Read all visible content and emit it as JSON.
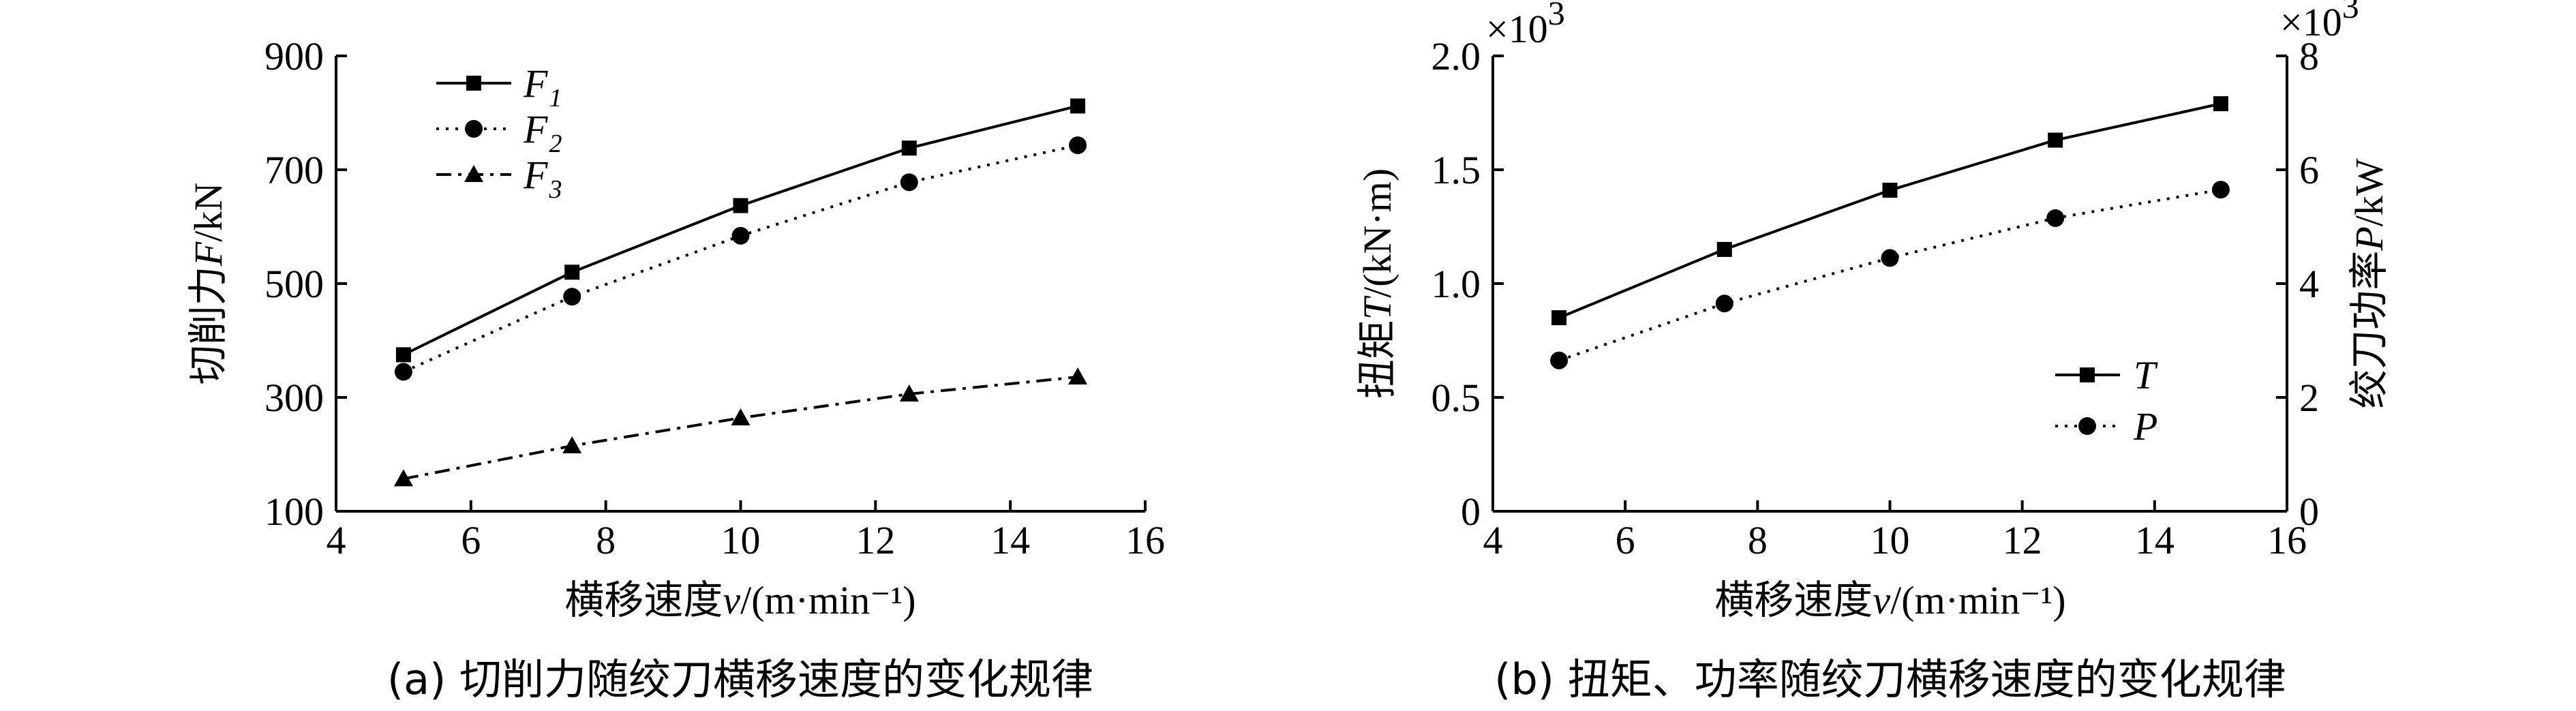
{
  "chart_data": [
    {
      "type": "line",
      "caption": "(a) 切削力随绞刀横移速度的变化规律",
      "xlabel": "横移速度v/(m·min⁻¹)",
      "ylabel": "切削力F/kN",
      "xlim": [
        4,
        16
      ],
      "ylim": [
        100,
        900
      ],
      "xticks": [
        "4",
        "6",
        "8",
        "10",
        "12",
        "14",
        "16"
      ],
      "yticks": [
        "100",
        "300",
        "500",
        "700",
        "900"
      ],
      "legend_position": "top-left",
      "series": [
        {
          "name": "F",
          "sub": "1",
          "marker": "square",
          "line": "solid",
          "x": [
            5,
            7.5,
            10,
            12.5,
            15
          ],
          "y": [
            375,
            520,
            637,
            738,
            812
          ]
        },
        {
          "name": "F",
          "sub": "2",
          "marker": "circle",
          "line": "dotted",
          "x": [
            5,
            7.5,
            10,
            12.5,
            15
          ],
          "y": [
            345,
            477,
            584,
            678,
            743
          ]
        },
        {
          "name": "F",
          "sub": "3",
          "marker": "triangle",
          "line": "dashdot",
          "x": [
            5,
            7.5,
            10,
            12.5,
            15
          ],
          "y": [
            157,
            215,
            264,
            306,
            336
          ]
        }
      ]
    },
    {
      "type": "line",
      "caption": "(b) 扭矩、功率随绞刀横移速度的变化规律",
      "xlabel": "横移速度v/(m·min⁻¹)",
      "ylabel_left": "扭矩T/(kN·m)",
      "ylabel_right": "绞刀功率P/kW",
      "xlim": [
        4,
        16
      ],
      "ylim_left": [
        0,
        2.0
      ],
      "ylim_right": [
        0,
        8
      ],
      "xticks": [
        "4",
        "6",
        "8",
        "10",
        "12",
        "14",
        "16"
      ],
      "yticks_left": [
        "0",
        "0.5",
        "1.0",
        "1.5",
        "2.0"
      ],
      "yticks_right": [
        "0",
        "2",
        "4",
        "6",
        "8"
      ],
      "multiplier_left": "×10",
      "multiplier_right": "×10",
      "multiplier_exp": "3",
      "legend_position": "bottom-right",
      "series": [
        {
          "name": "T",
          "axis": "left",
          "marker": "square",
          "line": "solid",
          "x": [
            5,
            7.5,
            10,
            12.5,
            15
          ],
          "y": [
            0.85,
            1.15,
            1.41,
            1.63,
            1.79
          ]
        },
        {
          "name": "P",
          "axis": "right",
          "marker": "circle",
          "line": "dotted",
          "x": [
            5,
            7.5,
            10,
            12.5,
            15
          ],
          "y": [
            2.65,
            3.65,
            4.45,
            5.15,
            5.65
          ]
        }
      ]
    }
  ]
}
